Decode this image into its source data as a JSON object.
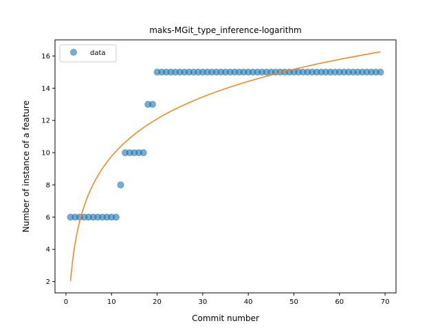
{
  "chart_data": {
    "type": "scatter",
    "title": "maks-MGit_type_inference-logarithm",
    "xlabel": "Commit number",
    "ylabel": "Number of instance of a feature",
    "xlim": [
      -2.4,
      72.4
    ],
    "ylim": [
      1.3,
      17.0
    ],
    "xticks": [
      0,
      10,
      20,
      30,
      40,
      50,
      60,
      70
    ],
    "yticks": [
      2,
      4,
      6,
      8,
      10,
      12,
      14,
      16
    ],
    "grid": false,
    "legend_position": "top-left",
    "series": [
      {
        "name": "data",
        "type": "scatter",
        "color": "#1f77b4",
        "x": [
          1,
          2,
          3,
          4,
          5,
          6,
          7,
          8,
          9,
          10,
          11,
          12,
          13,
          14,
          15,
          16,
          17,
          18,
          19,
          20,
          21,
          22,
          23,
          24,
          25,
          26,
          27,
          28,
          29,
          30,
          31,
          32,
          33,
          34,
          35,
          36,
          37,
          38,
          39,
          40,
          41,
          42,
          43,
          44,
          45,
          46,
          47,
          48,
          49,
          50,
          51,
          52,
          53,
          54,
          55,
          56,
          57,
          58,
          59,
          60,
          61,
          62,
          63,
          64,
          65,
          66,
          67,
          68,
          69
        ],
        "y": [
          6,
          6,
          6,
          6,
          6,
          6,
          6,
          6,
          6,
          6,
          6,
          8,
          10,
          10,
          10,
          10,
          10,
          13,
          13,
          15,
          15,
          15,
          15,
          15,
          15,
          15,
          15,
          15,
          15,
          15,
          15,
          15,
          15,
          15,
          15,
          15,
          15,
          15,
          15,
          15,
          15,
          15,
          15,
          15,
          15,
          15,
          15,
          15,
          15,
          15,
          15,
          15,
          15,
          15,
          15,
          15,
          15,
          15,
          15,
          15,
          15,
          15,
          15,
          15,
          15,
          15,
          15,
          15,
          15
        ]
      },
      {
        "type": "line",
        "color": "#ff7f0e",
        "fit": {
          "a": 2.03,
          "b": 3.36
        },
        "x_range": [
          1,
          69
        ]
      }
    ]
  }
}
